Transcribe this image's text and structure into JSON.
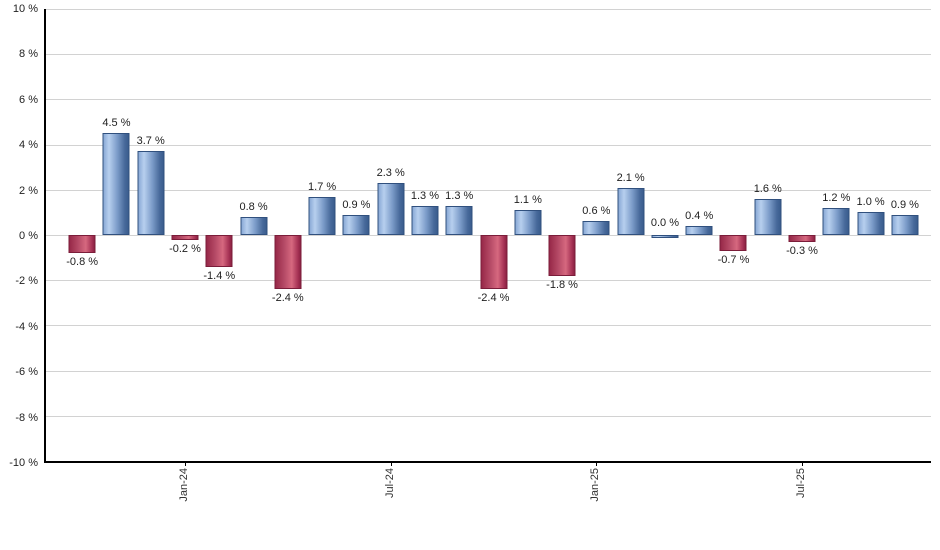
{
  "chart_data": {
    "type": "bar",
    "title": "",
    "xlabel": "",
    "ylabel": "",
    "ylim": [
      -10,
      10
    ],
    "grid": true,
    "legend": "none",
    "y_tick_labels": [
      "10 %",
      "8 %",
      "6 %",
      "4 %",
      "2 %",
      "0 %",
      "-2 %",
      "-4 %",
      "-6 %",
      "-8 %",
      "-10 %"
    ],
    "x_ticks": [
      {
        "index": 3,
        "label": "Jan-24"
      },
      {
        "index": 9,
        "label": "Jul-24"
      },
      {
        "index": 15,
        "label": "Jan-25"
      },
      {
        "index": 21,
        "label": "Jul-25"
      }
    ],
    "bars": [
      {
        "value": -0.8,
        "label": "-0.8 %",
        "color": "negative"
      },
      {
        "value": 4.5,
        "label": "4.5 %",
        "color": "positive"
      },
      {
        "value": 3.7,
        "label": "3.7 %",
        "color": "positive"
      },
      {
        "value": -0.2,
        "label": "-0.2 %",
        "color": "negative"
      },
      {
        "value": -1.4,
        "label": "-1.4 %",
        "color": "negative"
      },
      {
        "value": 0.8,
        "label": "0.8 %",
        "color": "positive"
      },
      {
        "value": -2.4,
        "label": "-2.4 %",
        "color": "negative"
      },
      {
        "value": 1.7,
        "label": "1.7 %",
        "color": "positive"
      },
      {
        "value": 0.9,
        "label": "0.9 %",
        "color": "positive"
      },
      {
        "value": 2.3,
        "label": "2.3 %",
        "color": "positive"
      },
      {
        "value": 1.3,
        "label": "1.3 %",
        "color": "positive"
      },
      {
        "value": 1.3,
        "label": "1.3 %",
        "color": "positive"
      },
      {
        "value": -2.4,
        "label": "-2.4 %",
        "color": "negative"
      },
      {
        "value": 1.1,
        "label": "1.1 %",
        "color": "positive"
      },
      {
        "value": -1.8,
        "label": "-1.8 %",
        "color": "negative"
      },
      {
        "value": 0.6,
        "label": "0.6 %",
        "color": "positive"
      },
      {
        "value": 2.1,
        "label": "2.1 %",
        "color": "positive"
      },
      {
        "value": 0.0,
        "label": "0.0 %",
        "color": "positive"
      },
      {
        "value": 0.4,
        "label": "0.4 %",
        "color": "positive"
      },
      {
        "value": -0.7,
        "label": "-0.7 %",
        "color": "negative"
      },
      {
        "value": 1.6,
        "label": "1.6 %",
        "color": "positive"
      },
      {
        "value": -0.3,
        "label": "-0.3 %",
        "color": "negative"
      },
      {
        "value": 1.2,
        "label": "1.2 %",
        "color": "positive"
      },
      {
        "value": 1.0,
        "label": "1.0 %",
        "color": "positive"
      },
      {
        "value": 0.9,
        "label": "0.9 %",
        "color": "positive"
      }
    ],
    "colors": {
      "positive_bar": "#7c9cc9",
      "negative_bar": "#b54a66",
      "gridline": "#d2d2d2",
      "axis": "#000000",
      "text": "#1e1e1e"
    }
  }
}
